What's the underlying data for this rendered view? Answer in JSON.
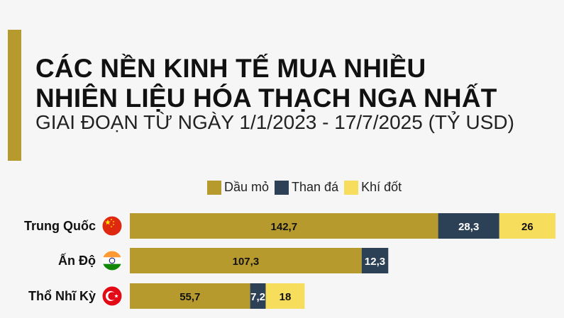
{
  "header": {
    "title_line1": "CÁC NỀN KINH TẾ MUA NHIỀU",
    "title_line2": "NHIÊN LIỆU HÓA THẠCH NGA NHẤT",
    "subtitle": "GIAI ĐOẠN TỪ NGÀY 1/1/2023 - 17/7/2025 (TỶ USD)",
    "accent_color": "#b79a2e"
  },
  "chart_data": {
    "type": "bar",
    "orientation": "horizontal",
    "stacked": true,
    "title": "CÁC NỀN KINH TẾ MUA NHIỀU NHIÊN LIỆU HÓA THẠCH NGA NHẤT",
    "subtitle": "GIAI ĐOẠN TỪ NGÀY 1/1/2023 - 17/7/2025 (TỶ USD)",
    "legend_position": "top",
    "grid": false,
    "categories": [
      "Trung Quốc",
      "Ấn Độ",
      "Thổ Nhĩ Kỳ"
    ],
    "flags": [
      "china-flag-icon",
      "india-flag-icon",
      "turkey-flag-icon"
    ],
    "series": [
      {
        "name": "Dầu mỏ",
        "color": "#b79a2e",
        "values": [
          142.7,
          107.3,
          55.7
        ],
        "labels": [
          "142,7",
          "107,3",
          "55,7"
        ]
      },
      {
        "name": "Than đá",
        "color": "#2d4156",
        "values": [
          28.3,
          12.3,
          7.2
        ],
        "labels": [
          "28,3",
          "12,3",
          "7,2"
        ]
      },
      {
        "name": "Khí đốt",
        "color": "#f7dd5c",
        "values": [
          26,
          0,
          18
        ],
        "labels": [
          "26",
          "",
          "18"
        ]
      }
    ],
    "xlim": [
      0,
      197
    ]
  }
}
